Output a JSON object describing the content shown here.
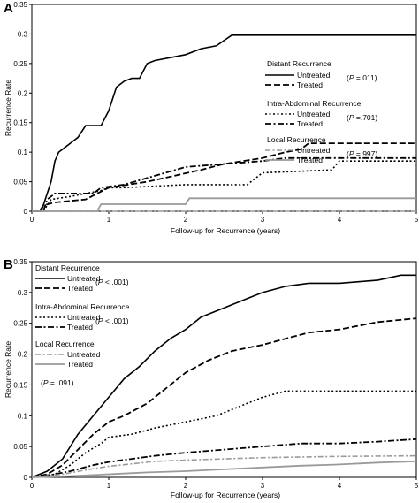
{
  "chart_data": [
    {
      "panel": "A",
      "type": "line",
      "xlabel": "Follow-up for Recurrence (years)",
      "ylabel": "Recurrence Rate",
      "xlim": [
        0,
        5
      ],
      "ylim": [
        0,
        0.35
      ],
      "xticks": [
        "0",
        "1",
        "2",
        "3",
        "4",
        "5"
      ],
      "yticks": [
        "0",
        "0.05",
        "0.1",
        "0.15",
        "0.2",
        "0.25",
        "0.3",
        "0.35"
      ],
      "legend": [
        {
          "heading": "Distant Recurrence",
          "items": [
            {
              "label": "Untreated",
              "series": 0
            },
            {
              "label": "Treated",
              "series": 1
            }
          ],
          "p_prefix": "P",
          "p_text": " =.011)"
        },
        {
          "heading": "Intra-Abdominal Recurrence",
          "items": [
            {
              "label": "Untreated",
              "series": 2
            },
            {
              "label": "Treated",
              "series": 3
            }
          ],
          "p_prefix": "P",
          "p_text": " =.701)"
        },
        {
          "heading": "Local Recurrence",
          "items": [
            {
              "label": "Untreated",
              "series": 4
            },
            {
              "label": "Treated",
              "series": 5
            }
          ],
          "p_prefix": "P",
          "p_text": " =.997)"
        }
      ],
      "series": [
        {
          "style": "solid-black",
          "x": [
            0,
            0.12,
            0.15,
            0.2,
            0.25,
            0.3,
            0.35,
            0.4,
            0.5,
            0.6,
            0.7,
            0.8,
            0.9,
            1.0,
            1.1,
            1.2,
            1.3,
            1.4,
            1.5,
            1.6,
            1.8,
            2.0,
            2.2,
            2.4,
            2.6,
            3.0,
            4.0,
            5.0
          ],
          "y": [
            0,
            0,
            0.01,
            0.03,
            0.05,
            0.085,
            0.1,
            0.105,
            0.115,
            0.125,
            0.145,
            0.145,
            0.145,
            0.17,
            0.21,
            0.22,
            0.225,
            0.225,
            0.25,
            0.255,
            0.26,
            0.265,
            0.275,
            0.28,
            0.298,
            0.298,
            0.298,
            0.298
          ]
        },
        {
          "style": "dash-black",
          "x": [
            0,
            0.1,
            0.15,
            0.3,
            0.7,
            1.0,
            1.5,
            2.2,
            2.5,
            3.0,
            3.3,
            3.5,
            3.6,
            4.0,
            5.0
          ],
          "y": [
            0,
            0,
            0.01,
            0.015,
            0.02,
            0.04,
            0.05,
            0.07,
            0.08,
            0.09,
            0.1,
            0.105,
            0.115,
            0.115,
            0.115
          ]
        },
        {
          "style": "dot-black",
          "x": [
            0,
            0.15,
            0.25,
            0.5,
            0.9,
            1.0,
            1.2,
            2.0,
            2.8,
            3.0,
            3.9,
            4.0,
            5.0
          ],
          "y": [
            0,
            0,
            0.02,
            0.025,
            0.035,
            0.04,
            0.04,
            0.045,
            0.045,
            0.065,
            0.07,
            0.085,
            0.085
          ]
        },
        {
          "style": "dashdot-black",
          "x": [
            0,
            0.15,
            0.2,
            0.3,
            0.8,
            0.9,
            1.2,
            1.6,
            2.0,
            2.5,
            3.0,
            3.3,
            4.0,
            5.0
          ],
          "y": [
            0,
            0,
            0.02,
            0.03,
            0.03,
            0.04,
            0.045,
            0.06,
            0.075,
            0.08,
            0.085,
            0.09,
            0.09,
            0.09
          ]
        },
        {
          "style": "dashdot-gray",
          "x": [
            0,
            5.0
          ],
          "y": [
            0,
            0
          ]
        },
        {
          "style": "solid-gray",
          "x": [
            0,
            0.85,
            0.9,
            2.0,
            2.05,
            5.0
          ],
          "y": [
            0,
            0,
            0.012,
            0.012,
            0.022,
            0.022
          ]
        }
      ]
    },
    {
      "panel": "B",
      "type": "line",
      "xlabel": "Follow-up for Recurrence (years)",
      "ylabel": "Recurrence Rate",
      "xlim": [
        0,
        5
      ],
      "ylim": [
        0,
        0.35
      ],
      "xticks": [
        "0",
        "1",
        "2",
        "3",
        "4",
        "5"
      ],
      "yticks": [
        "0",
        "0.05",
        "0.1",
        "0.15",
        "0.2",
        "0.25",
        "0.3",
        "0.35"
      ],
      "legend": [
        {
          "heading": "Distant Recurrence",
          "items": [
            {
              "label": "Untreated",
              "series": 0
            },
            {
              "label": "Treated",
              "series": 1
            }
          ],
          "p_prefix": "P",
          "p_text": " < .001)"
        },
        {
          "heading": "Intra-Abdominal Recurrence",
          "items": [
            {
              "label": "Untreated",
              "series": 2
            },
            {
              "label": "Treated",
              "series": 3
            }
          ],
          "p_prefix": "P",
          "p_text": " < .001)"
        },
        {
          "heading": "Local Recurrence",
          "items": [
            {
              "label": "Untreated",
              "series": 4
            },
            {
              "label": "Treated",
              "series": 5
            }
          ],
          "p_prefix": "P",
          "p_text": " = .091)"
        }
      ],
      "series": [
        {
          "style": "solid-black",
          "x": [
            0,
            0.2,
            0.4,
            0.6,
            0.8,
            1.0,
            1.2,
            1.4,
            1.6,
            1.8,
            2.0,
            2.2,
            2.4,
            2.6,
            2.8,
            3.0,
            3.3,
            3.6,
            4.0,
            4.5,
            4.8,
            5.0
          ],
          "y": [
            0,
            0.01,
            0.03,
            0.07,
            0.1,
            0.13,
            0.16,
            0.18,
            0.205,
            0.225,
            0.24,
            0.26,
            0.27,
            0.28,
            0.29,
            0.3,
            0.31,
            0.315,
            0.315,
            0.32,
            0.328,
            0.328
          ]
        },
        {
          "style": "dash-black",
          "x": [
            0,
            0.2,
            0.4,
            0.6,
            0.8,
            1.0,
            1.2,
            1.5,
            1.8,
            2.0,
            2.3,
            2.6,
            3.0,
            3.3,
            3.6,
            4.0,
            4.5,
            5.0
          ],
          "y": [
            0,
            0.005,
            0.02,
            0.045,
            0.07,
            0.09,
            0.1,
            0.12,
            0.15,
            0.17,
            0.19,
            0.205,
            0.215,
            0.225,
            0.235,
            0.24,
            0.252,
            0.258
          ]
        },
        {
          "style": "dot-black",
          "x": [
            0,
            0.3,
            0.5,
            0.7,
            0.9,
            1.0,
            1.3,
            1.6,
            2.0,
            2.4,
            2.8,
            3.0,
            3.3,
            3.6,
            4.0,
            5.0
          ],
          "y": [
            0,
            0.005,
            0.02,
            0.04,
            0.055,
            0.065,
            0.07,
            0.08,
            0.09,
            0.1,
            0.12,
            0.13,
            0.14,
            0.14,
            0.14,
            0.14
          ]
        },
        {
          "style": "dashdot-black",
          "x": [
            0,
            0.3,
            0.5,
            0.8,
            1.0,
            1.3,
            1.6,
            2.0,
            2.5,
            3.0,
            3.5,
            4.0,
            4.5,
            5.0
          ],
          "y": [
            0,
            0.005,
            0.01,
            0.02,
            0.025,
            0.03,
            0.035,
            0.04,
            0.045,
            0.05,
            0.055,
            0.055,
            0.058,
            0.062
          ]
        },
        {
          "style": "dashdot-gray",
          "x": [
            0,
            0.4,
            0.7,
            1.0,
            1.3,
            1.6,
            2.0,
            2.5,
            3.0,
            3.5,
            4.0,
            5.0
          ],
          "y": [
            0,
            0.005,
            0.012,
            0.018,
            0.022,
            0.026,
            0.028,
            0.03,
            0.032,
            0.033,
            0.034,
            0.035
          ]
        },
        {
          "style": "solid-gray",
          "x": [
            0,
            0.5,
            1.0,
            1.5,
            2.0,
            2.5,
            3.0,
            3.5,
            4.0,
            4.5,
            5.0
          ],
          "y": [
            0,
            0.002,
            0.005,
            0.008,
            0.01,
            0.013,
            0.016,
            0.019,
            0.021,
            0.024,
            0.026
          ]
        }
      ]
    }
  ]
}
